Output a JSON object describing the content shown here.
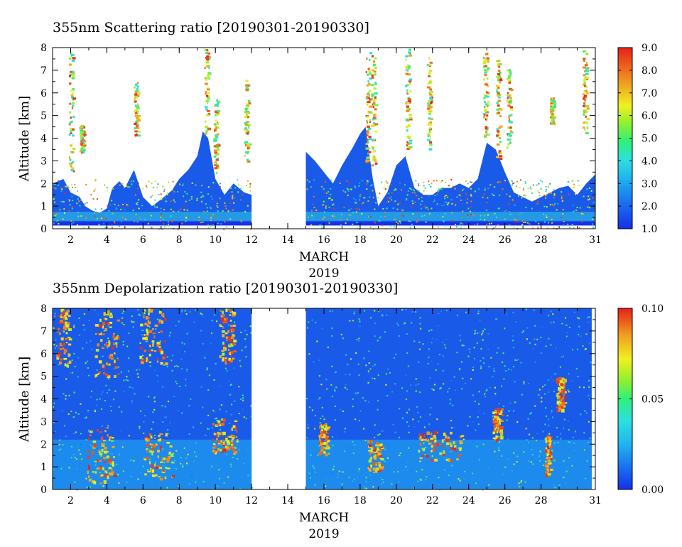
{
  "chart_data": [
    {
      "type": "heatmap",
      "title": "355nm Scattering ratio [20190301-20190330]",
      "xlabel": "MARCH",
      "xlabel2": "2019",
      "ylabel": "Altitude [km]",
      "xlim": [
        1,
        31
      ],
      "ylim": [
        0,
        8
      ],
      "xticks": [
        2,
        4,
        6,
        8,
        10,
        12,
        14,
        16,
        18,
        20,
        22,
        24,
        26,
        28,
        31
      ],
      "yticks": [
        0,
        1,
        2,
        3,
        4,
        5,
        6,
        7,
        8
      ],
      "data_gap": [
        12,
        15
      ],
      "colorbar": {
        "min": 1.0,
        "max": 9.0,
        "ticks": [
          1.0,
          2.0,
          3.0,
          4.0,
          5.0,
          6.0,
          7.0,
          8.0,
          9.0
        ],
        "tick_labels": [
          "1.0",
          "2.0",
          "3.0",
          "4.0",
          "5.0",
          "6.0",
          "7.0",
          "8.0",
          "9.0"
        ]
      },
      "background_top_km": [
        [
          1,
          2.0
        ],
        [
          1.6,
          2.2
        ],
        [
          2,
          1.6
        ],
        [
          2.5,
          1.4
        ],
        [
          2.8,
          1.0
        ],
        [
          3.2,
          0.8
        ],
        [
          3.6,
          0.7
        ],
        [
          4,
          0.9
        ],
        [
          4.3,
          1.8
        ],
        [
          4.7,
          2.1
        ],
        [
          5,
          1.8
        ],
        [
          5.5,
          2.6
        ],
        [
          6,
          1.4
        ],
        [
          6.5,
          1.0
        ],
        [
          7,
          1.3
        ],
        [
          7.6,
          1.7
        ],
        [
          8,
          2.2
        ],
        [
          8.5,
          2.6
        ],
        [
          9,
          3.2
        ],
        [
          9.3,
          4.3
        ],
        [
          9.6,
          4.0
        ],
        [
          10,
          2.2
        ],
        [
          10.5,
          1.5
        ],
        [
          11,
          2.0
        ],
        [
          11.6,
          1.6
        ],
        [
          12,
          1.5
        ],
        [
          15,
          3.4
        ],
        [
          15.5,
          3.0
        ],
        [
          16,
          2.5
        ],
        [
          16.5,
          2.0
        ],
        [
          17,
          2.8
        ],
        [
          17.6,
          3.6
        ],
        [
          18,
          4.2
        ],
        [
          18.3,
          4.5
        ],
        [
          18.7,
          2.2
        ],
        [
          19,
          1.0
        ],
        [
          19.5,
          1.6
        ],
        [
          20,
          2.8
        ],
        [
          20.5,
          3.2
        ],
        [
          21,
          1.8
        ],
        [
          21.5,
          1.5
        ],
        [
          22,
          1.5
        ],
        [
          22.5,
          1.8
        ],
        [
          23,
          1.8
        ],
        [
          23.5,
          2.0
        ],
        [
          24,
          1.8
        ],
        [
          24.5,
          2.2
        ],
        [
          25,
          3.8
        ],
        [
          25.5,
          3.5
        ],
        [
          26,
          2.5
        ],
        [
          26.5,
          1.6
        ],
        [
          27,
          1.4
        ],
        [
          27.5,
          1.2
        ],
        [
          28,
          1.4
        ],
        [
          28.5,
          1.6
        ],
        [
          29,
          1.8
        ],
        [
          29.5,
          1.9
        ],
        [
          30,
          1.5
        ],
        [
          30.5,
          2.0
        ],
        [
          31,
          2.4
        ]
      ],
      "cloud_columns": [
        [
          2.0,
          2.5,
          7.9
        ],
        [
          2.6,
          3.4,
          4.6
        ],
        [
          5.6,
          4.0,
          6.5
        ],
        [
          9.5,
          4.2,
          8.0
        ],
        [
          10.0,
          2.5,
          5.8
        ],
        [
          11.7,
          3.0,
          6.6
        ],
        [
          18.4,
          3.0,
          8.0
        ],
        [
          18.7,
          2.8,
          7.8
        ],
        [
          20.6,
          3.5,
          8.0
        ],
        [
          21.8,
          3.5,
          7.6
        ],
        [
          24.9,
          4.0,
          7.8
        ],
        [
          25.6,
          3.0,
          7.5
        ],
        [
          26.2,
          3.6,
          7.1
        ],
        [
          28.6,
          4.6,
          5.8
        ],
        [
          30.4,
          4.2,
          7.9
        ]
      ]
    },
    {
      "type": "heatmap",
      "title": "355nm Depolarization ratio [20190301-20190330]",
      "xlabel": "MARCH",
      "xlabel2": "2019",
      "ylabel": "Altitude [km]",
      "xlim": [
        1,
        31
      ],
      "ylim": [
        0,
        8
      ],
      "xticks": [
        2,
        4,
        6,
        8,
        10,
        12,
        14,
        16,
        18,
        20,
        22,
        24,
        26,
        28,
        31
      ],
      "yticks": [
        0,
        1,
        2,
        3,
        4,
        5,
        6,
        7,
        8
      ],
      "data_gap": [
        12,
        15
      ],
      "colorbar": {
        "min": 0.0,
        "max": 0.1,
        "ticks": [
          0.0,
          0.05,
          0.1
        ],
        "tick_labels": [
          "0.00",
          "0.05",
          "0.10"
        ]
      },
      "high_depol_regions": [
        [
          1.2,
          1.9,
          5.5,
          8.0
        ],
        [
          2.9,
          4.4,
          0.3,
          2.8
        ],
        [
          3.3,
          4.6,
          5.0,
          8.0
        ],
        [
          5.8,
          7.2,
          5.5,
          8.0
        ],
        [
          6.0,
          7.6,
          0.5,
          2.5
        ],
        [
          9.8,
          11.2,
          1.6,
          3.2
        ],
        [
          10.2,
          11.0,
          5.6,
          8.0
        ],
        [
          15.7,
          16.2,
          1.6,
          3.0
        ],
        [
          18.4,
          19.2,
          0.8,
          2.2
        ],
        [
          21.2,
          23.6,
          1.3,
          2.6
        ],
        [
          25.3,
          25.8,
          2.2,
          3.6
        ],
        [
          28.8,
          29.3,
          3.5,
          5.0
        ],
        [
          28.2,
          28.5,
          0.6,
          2.4
        ]
      ]
    }
  ]
}
